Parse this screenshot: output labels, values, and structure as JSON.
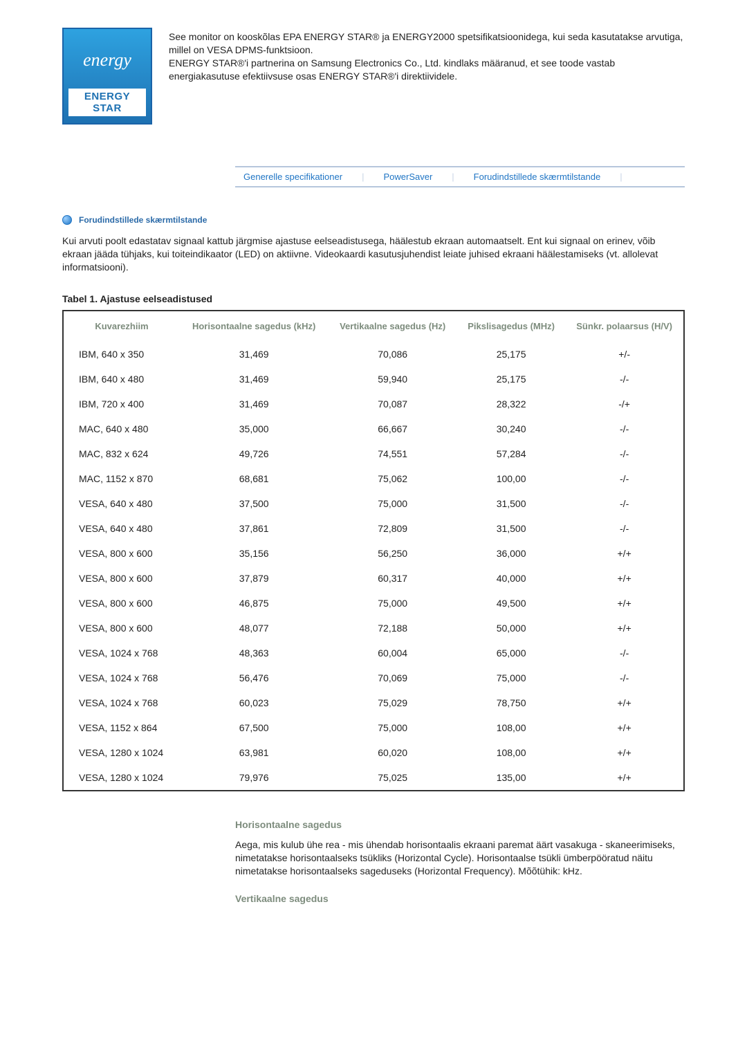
{
  "logo": {
    "script": "energy",
    "label": "ENERGY STAR"
  },
  "compliance_text": "See monitor on kooskõlas EPA ENERGY STAR® ja ENERGY2000 spetsifikatsioonidega, kui seda kasutatakse arvutiga, millel on VESA DPMS-funktsioon.\nENERGY STAR®'i partnerina on Samsung Electronics Co., Ltd. kindlaks määranud, et see toode vastab energiakasutuse efektiivsuse osas ENERGY STAR®'i direktiividele.",
  "tabs": {
    "t1": "Generelle specifikationer",
    "t2": "PowerSaver",
    "t3": "Forudindstillede skærmtilstande"
  },
  "section_title": "Forudindstillede skærmtilstande",
  "section_body": "Kui arvuti poolt edastatav signaal kattub järgmise ajastuse eelseadistusega, häälestub ekraan automaatselt. Ent kui signaal on erinev, võib ekraan jääda tühjaks, kui toiteindikaator (LED) on aktiivne. Videokaardi kasutusjuhendist leiate juhised ekraani häälestamiseks (vt. allolevat informatsiooni).",
  "table": {
    "caption": "Tabel 1. Ajastuse eelseadistused",
    "columns": {
      "c0": "Kuvarezhiim",
      "c1": "Horisontaalne sagedus (kHz)",
      "c2": "Vertikaalne sagedus (Hz)",
      "c3": "Pikslisagedus (MHz)",
      "c4": "Sünkr. polaarsus (H/V)"
    },
    "rows": [
      {
        "mode": "IBM, 640 x 350",
        "hf": "31,469",
        "vf": "70,086",
        "pc": "25,175",
        "sp": "+/-"
      },
      {
        "mode": "IBM, 640 x 480",
        "hf": "31,469",
        "vf": "59,940",
        "pc": "25,175",
        "sp": "-/-"
      },
      {
        "mode": "IBM, 720 x 400",
        "hf": "31,469",
        "vf": "70,087",
        "pc": "28,322",
        "sp": "-/+"
      },
      {
        "mode": "MAC, 640 x 480",
        "hf": "35,000",
        "vf": "66,667",
        "pc": "30,240",
        "sp": "-/-"
      },
      {
        "mode": "MAC, 832 x 624",
        "hf": "49,726",
        "vf": "74,551",
        "pc": "57,284",
        "sp": "-/-"
      },
      {
        "mode": "MAC, 1152 x 870",
        "hf": "68,681",
        "vf": "75,062",
        "pc": "100,00",
        "sp": "-/-"
      },
      {
        "mode": "VESA, 640 x 480",
        "hf": "37,500",
        "vf": "75,000",
        "pc": "31,500",
        "sp": "-/-"
      },
      {
        "mode": "VESA, 640 x 480",
        "hf": "37,861",
        "vf": "72,809",
        "pc": "31,500",
        "sp": "-/-"
      },
      {
        "mode": "VESA, 800 x 600",
        "hf": "35,156",
        "vf": "56,250",
        "pc": "36,000",
        "sp": "+/+"
      },
      {
        "mode": "VESA, 800 x 600",
        "hf": "37,879",
        "vf": "60,317",
        "pc": "40,000",
        "sp": "+/+"
      },
      {
        "mode": "VESA, 800 x 600",
        "hf": "46,875",
        "vf": "75,000",
        "pc": "49,500",
        "sp": "+/+"
      },
      {
        "mode": "VESA, 800 x 600",
        "hf": "48,077",
        "vf": "72,188",
        "pc": "50,000",
        "sp": "+/+"
      },
      {
        "mode": "VESA, 1024 x 768",
        "hf": "48,363",
        "vf": "60,004",
        "pc": "65,000",
        "sp": "-/-"
      },
      {
        "mode": "VESA, 1024 x 768",
        "hf": "56,476",
        "vf": "70,069",
        "pc": "75,000",
        "sp": "-/-"
      },
      {
        "mode": "VESA, 1024 x 768",
        "hf": "60,023",
        "vf": "75,029",
        "pc": "78,750",
        "sp": "+/+"
      },
      {
        "mode": "VESA, 1152 x 864",
        "hf": "67,500",
        "vf": "75,000",
        "pc": "108,00",
        "sp": "+/+"
      },
      {
        "mode": "VESA, 1280 x 1024",
        "hf": "63,981",
        "vf": "60,020",
        "pc": "108,00",
        "sp": "+/+"
      },
      {
        "mode": "VESA, 1280 x 1024",
        "hf": "79,976",
        "vf": "75,025",
        "pc": "135,00",
        "sp": "+/+"
      }
    ]
  },
  "defs": {
    "h_title": "Horisontaalne sagedus",
    "h_body": "Aega, mis kulub ühe rea - mis ühendab horisontaalis ekraani paremat äärt vasakuga - skaneerimiseks, nimetatakse horisontaalseks tsükliks (Horizontal Cycle). Horisontaalse tsükli ümberpööratud näitu nimetatakse horisontaalseks sageduseks (Horizontal Frequency). Mõõtühik: kHz.",
    "v_title": "Vertikaalne sagedus"
  }
}
